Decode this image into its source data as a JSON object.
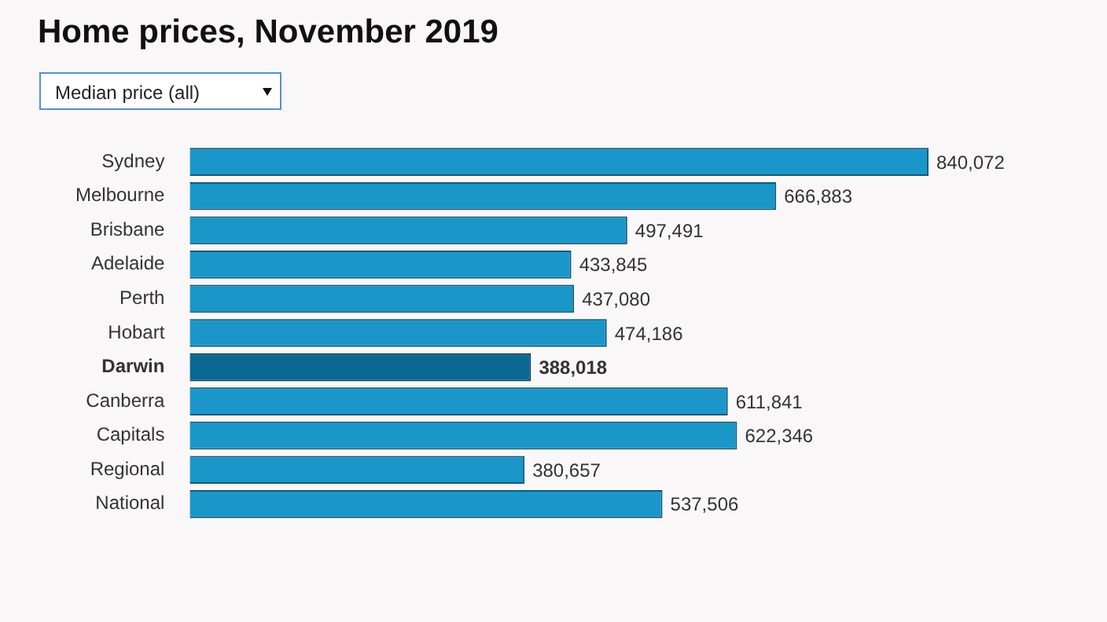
{
  "chart_data": {
    "type": "bar",
    "orientation": "horizontal",
    "title": "Home prices, November 2019",
    "annotations": [
      "Median price (all)"
    ],
    "categories": [
      "Sydney",
      "Melbourne",
      "Brisbane",
      "Adelaide",
      "Perth",
      "Hobart",
      "Darwin",
      "Canberra",
      "Capitals",
      "Regional",
      "National"
    ],
    "values": [
      840072,
      666883,
      497491,
      433845,
      437080,
      474186,
      388018,
      611841,
      622346,
      380657,
      537506
    ],
    "colors": [
      "#1a96c8",
      "#1a96c8",
      "#1a96c8",
      "#1a96c8",
      "#1a96c8",
      "#1a96c8",
      "#0b6892",
      "#1a96c8",
      "#1a96c8",
      "#1a96c8",
      "#1a96c8"
    ],
    "value_labels": [
      "840,072",
      "666,883",
      "497,491",
      "433,845",
      "437,080",
      "474,186",
      "388,018",
      "611,841",
      "622,346",
      "380,657",
      "537,506"
    ],
    "tick_labels": "y",
    "legend": false
  }
}
